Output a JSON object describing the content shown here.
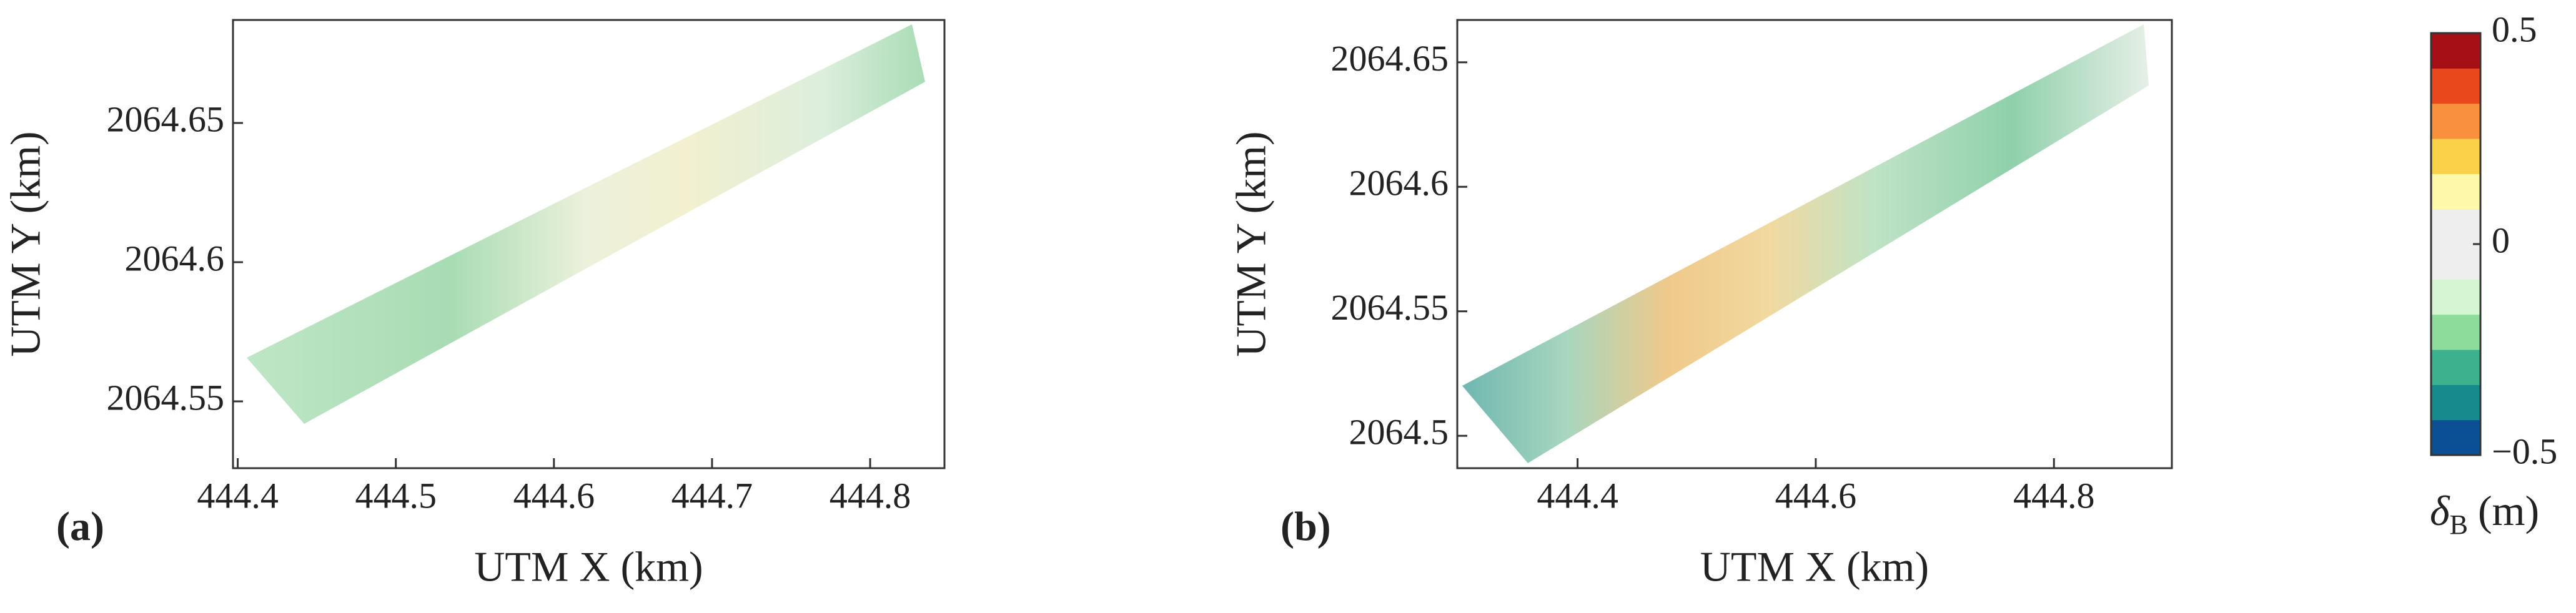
{
  "chart_data": [
    {
      "type": "scatter",
      "panel_label": "(a)",
      "x_label": "UTM X (km)",
      "y_label": "UTM Y (km)",
      "xlim": [
        444.397,
        444.847
      ],
      "xticks": [
        444.4,
        444.5,
        444.6,
        444.7,
        444.8
      ],
      "ylim": [
        2064.526,
        2064.687
      ],
      "yticks": [
        2064.55,
        2064.6,
        2064.65
      ]
    },
    {
      "type": "scatter",
      "panel_label": "(b)",
      "x_label": "UTM X (km)",
      "y_label": "UTM Y (km)",
      "xlim": [
        444.299,
        444.899
      ],
      "xticks": [
        444.4,
        444.6,
        444.8
      ],
      "ylim": [
        2064.487,
        2064.667
      ],
      "yticks": [
        2064.5,
        2064.55,
        2064.6,
        2064.65
      ]
    },
    {
      "type": "colorbar",
      "label_symbol": "δ",
      "label_subscript": "B",
      "label_unit": "(m)",
      "clim": [
        -0.5,
        0.5
      ],
      "ticks": [
        {
          "value": -0.5,
          "label": "−0.5"
        },
        0,
        0.5
      ],
      "colors": [
        "#0b4f95",
        "#178a8e",
        "#3db08d",
        "#8ddc9b",
        "#d6f5d2",
        "#eeeeee",
        "#eeeeee",
        "#fdf9a8",
        "#f9d24a",
        "#f8903e",
        "#e9481c",
        "#a50f15"
      ]
    }
  ]
}
